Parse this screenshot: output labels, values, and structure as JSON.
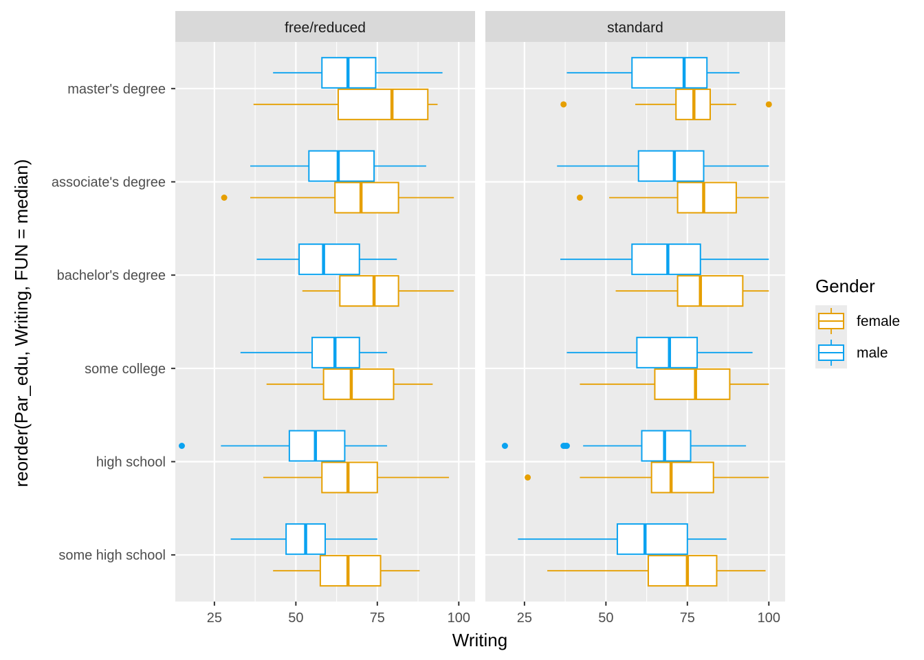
{
  "chart_data": {
    "type": "boxplot",
    "orientation": "horizontal",
    "facets": [
      "free/reduced",
      "standard"
    ],
    "xlabel": "Writing",
    "ylabel": "reorder(Par_edu, Writing, FUN = median)",
    "xlim": [
      13,
      105
    ],
    "xticks": [
      25,
      50,
      75,
      100
    ],
    "categories": [
      "some high school",
      "high school",
      "some college",
      "bachelor's degree",
      "associate's degree",
      "master's degree"
    ],
    "legend": {
      "title": "Gender",
      "position": "right",
      "items": [
        {
          "name": "female",
          "color": "#E69F00"
        },
        {
          "name": "male",
          "color": "#0AA2F0"
        }
      ]
    },
    "colors": {
      "female": "#E69F00",
      "male": "#0AA2F0",
      "panel_bg": "#EBEBEB",
      "strip_bg": "#D9D9D9",
      "grid": "#FFFFFF"
    },
    "series": [
      {
        "name": "female",
        "facet": "free/reduced",
        "boxes": [
          {
            "category": "some high school",
            "min": 43,
            "q1": 57.5,
            "median": 66,
            "q3": 76,
            "max": 88,
            "outliers": []
          },
          {
            "category": "high school",
            "min": 40,
            "q1": 58,
            "median": 66,
            "q3": 75,
            "max": 97,
            "outliers": []
          },
          {
            "category": "some college",
            "min": 41,
            "q1": 58.5,
            "median": 67,
            "q3": 80,
            "max": 92,
            "outliers": []
          },
          {
            "category": "bachelor's degree",
            "min": 52,
            "q1": 63.5,
            "median": 74,
            "q3": 81.5,
            "max": 98.5,
            "outliers": []
          },
          {
            "category": "associate's degree",
            "min": 36,
            "q1": 62,
            "median": 70,
            "q3": 81.5,
            "max": 98.5,
            "outliers": [
              28
            ]
          },
          {
            "category": "master's degree",
            "min": 37,
            "q1": 63,
            "median": 79.5,
            "q3": 90.5,
            "max": 93.5,
            "outliers": []
          }
        ]
      },
      {
        "name": "male",
        "facet": "free/reduced",
        "boxes": [
          {
            "category": "some high school",
            "min": 30,
            "q1": 47,
            "median": 53,
            "q3": 59,
            "max": 75,
            "outliers": []
          },
          {
            "category": "high school",
            "min": 27,
            "q1": 48,
            "median": 56,
            "q3": 65,
            "max": 78,
            "outliers": [
              15
            ]
          },
          {
            "category": "some college",
            "min": 33,
            "q1": 55,
            "median": 62,
            "q3": 69.5,
            "max": 78,
            "outliers": []
          },
          {
            "category": "bachelor's degree",
            "min": 38,
            "q1": 51,
            "median": 58.5,
            "q3": 69.5,
            "max": 81,
            "outliers": []
          },
          {
            "category": "associate's degree",
            "min": 36,
            "q1": 54,
            "median": 63,
            "q3": 74,
            "max": 90,
            "outliers": []
          },
          {
            "category": "master's degree",
            "min": 43,
            "q1": 58,
            "median": 66,
            "q3": 74.5,
            "max": 95,
            "outliers": []
          }
        ]
      },
      {
        "name": "female",
        "facet": "standard",
        "boxes": [
          {
            "category": "some high school",
            "min": 32,
            "q1": 63,
            "median": 75,
            "q3": 84,
            "max": 99,
            "outliers": []
          },
          {
            "category": "high school",
            "min": 42,
            "q1": 64,
            "median": 70,
            "q3": 83,
            "max": 100,
            "outliers": [
              26
            ]
          },
          {
            "category": "some college",
            "min": 42,
            "q1": 65,
            "median": 77.5,
            "q3": 88,
            "max": 100,
            "outliers": []
          },
          {
            "category": "bachelor's degree",
            "min": 53,
            "q1": 72,
            "median": 79,
            "q3": 92,
            "max": 100,
            "outliers": []
          },
          {
            "category": "associate's degree",
            "min": 51,
            "q1": 72,
            "median": 80,
            "q3": 90,
            "max": 100,
            "outliers": [
              42
            ]
          },
          {
            "category": "master's degree",
            "min": 59,
            "q1": 71.5,
            "median": 77,
            "q3": 82,
            "max": 90,
            "outliers": [
              37,
              100
            ]
          }
        ]
      },
      {
        "name": "male",
        "facet": "standard",
        "boxes": [
          {
            "category": "some high school",
            "min": 23,
            "q1": 53.5,
            "median": 62,
            "q3": 75,
            "max": 87,
            "outliers": []
          },
          {
            "category": "high school",
            "min": 43,
            "q1": 61,
            "median": 68,
            "q3": 76,
            "max": 93,
            "outliers": [
              19,
              37,
              37.5,
              38
            ]
          },
          {
            "category": "some college",
            "min": 38,
            "q1": 59.5,
            "median": 69.5,
            "q3": 78,
            "max": 95,
            "outliers": []
          },
          {
            "category": "bachelor's degree",
            "min": 36,
            "q1": 58,
            "median": 69,
            "q3": 79,
            "max": 100,
            "outliers": []
          },
          {
            "category": "associate's degree",
            "min": 35,
            "q1": 60,
            "median": 71,
            "q3": 80,
            "max": 100,
            "outliers": []
          },
          {
            "category": "master's degree",
            "min": 38,
            "q1": 58,
            "median": 74,
            "q3": 81,
            "max": 91,
            "outliers": []
          }
        ]
      }
    ]
  }
}
